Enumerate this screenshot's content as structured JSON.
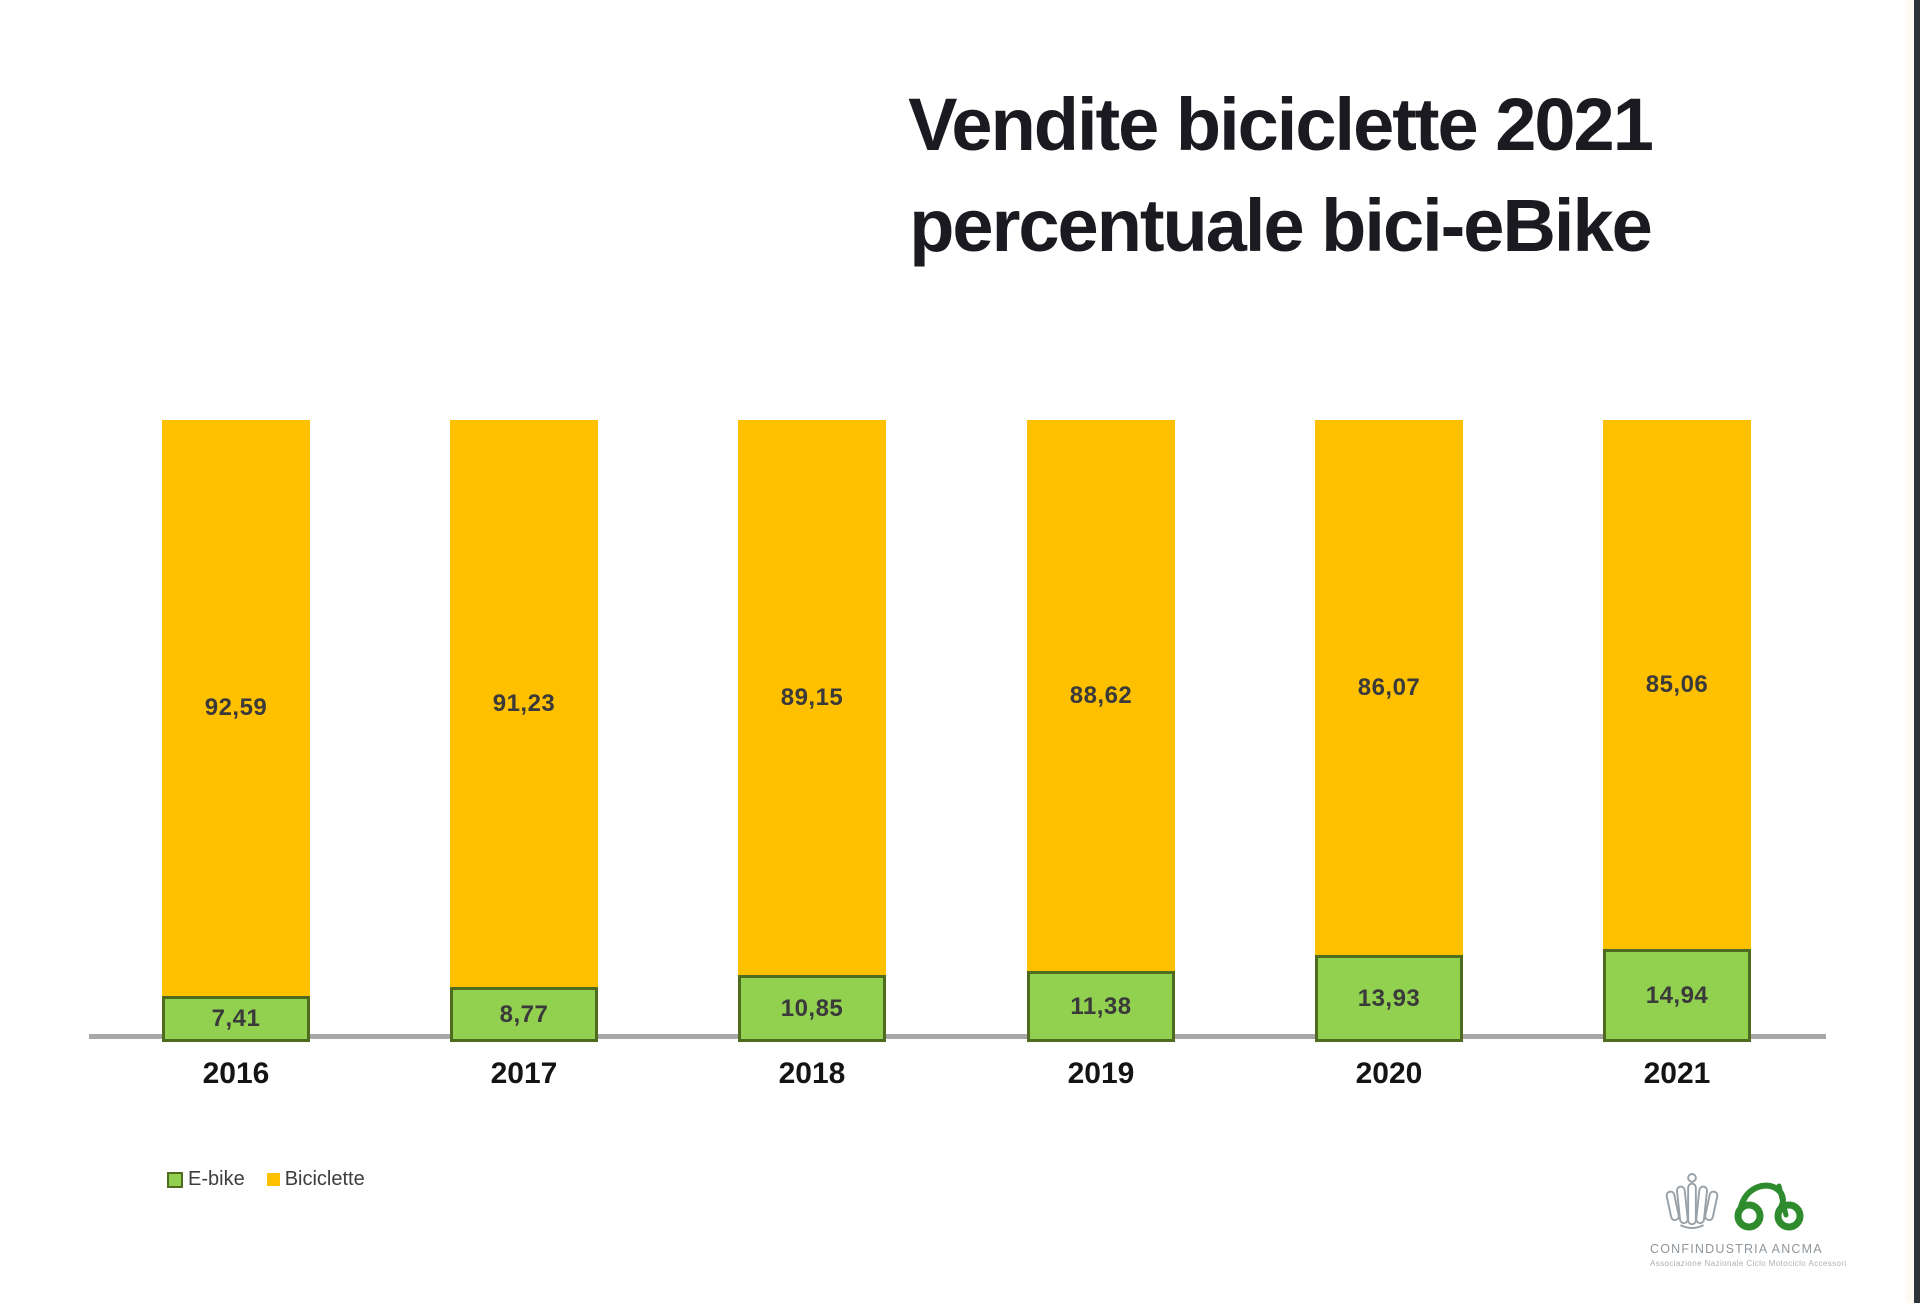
{
  "title": {
    "line1": "Vendite biciclette 2021",
    "line2": "percentuale bici-eBike"
  },
  "chart_data": {
    "type": "bar",
    "stacked": true,
    "title": "Vendite biciclette 2021 percentuale bici-eBike",
    "categories": [
      "2016",
      "2017",
      "2018",
      "2019",
      "2020",
      "2021"
    ],
    "series": [
      {
        "name": "E-bike",
        "color": "#92D050",
        "border_color": "#4E6B1F",
        "values": [
          7.41,
          8.77,
          10.85,
          11.38,
          13.93,
          14.94
        ],
        "labels": [
          "7,41",
          "8,77",
          "10,85",
          "11,38",
          "13,93",
          "14,94"
        ]
      },
      {
        "name": "Biciclette",
        "color": "#FFC000",
        "values": [
          92.59,
          91.23,
          89.15,
          88.62,
          86.07,
          85.06
        ],
        "labels": [
          "92,59",
          "91,23",
          "89,15",
          "88,62",
          "86,07",
          "85,06"
        ]
      }
    ],
    "xlabel": "",
    "ylabel": "",
    "ylim": [
      0,
      100
    ],
    "unit": "percent",
    "grid": false,
    "legend_position": "bottom-left"
  },
  "footer": {
    "org_name": "CONFINDUSTRIA ANCMA",
    "org_subtitle": "Associazione Nazionale Ciclo Motociclo Accessori",
    "icons": [
      "confindustria-eagle-icon",
      "ancma-bike-icon"
    ]
  }
}
